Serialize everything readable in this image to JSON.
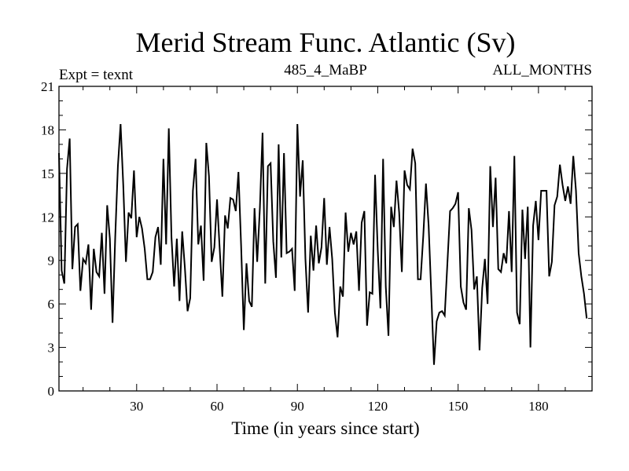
{
  "chart_data": {
    "type": "line",
    "title": "Merid Stream Func. Atlantic (Sv)",
    "subtitle_left": "Expt = texnt",
    "subtitle_center": "485_4_MaBP",
    "subtitle_right": "ALL_MONTHS",
    "xlabel": "Time (in years since start)",
    "ylabel": "",
    "xlim": [
      1,
      200
    ],
    "ylim": [
      0,
      21
    ],
    "xticks": [
      30,
      60,
      90,
      120,
      150,
      180
    ],
    "yticks": [
      0,
      3,
      6,
      9,
      12,
      15,
      18,
      21
    ],
    "series": [
      {
        "name": "Merid Stream Func. Atlantic",
        "x_start": 1,
        "x_step": 1,
        "values": [
          16.4,
          8.3,
          7.4,
          15.3,
          17.4,
          8.4,
          11.3,
          11.5,
          6.9,
          9.1,
          8.8,
          10.1,
          5.6,
          9.8,
          8.2,
          7.9,
          10.9,
          6.7,
          12.8,
          10.5,
          4.7,
          10.6,
          15.5,
          18.4,
          14.2,
          8.9,
          12.3,
          11.9,
          15.2,
          10.6,
          12.0,
          11.2,
          9.8,
          7.7,
          7.7,
          8.2,
          10.6,
          11.3,
          8.7,
          16.0,
          10.1,
          18.1,
          10.6,
          7.2,
          10.5,
          6.2,
          11.0,
          8.5,
          5.5,
          6.4,
          13.8,
          16.0,
          10.1,
          11.4,
          7.6,
          17.1,
          14.8,
          8.9,
          9.9,
          13.2,
          9.8,
          6.5,
          12.1,
          11.2,
          13.3,
          13.2,
          12.4,
          15.1,
          10.0,
          4.2,
          8.8,
          6.2,
          5.8,
          12.6,
          8.9,
          12.6,
          17.8,
          7.4,
          15.5,
          15.7,
          10.3,
          7.8,
          17.0,
          9.2,
          16.4,
          9.5,
          9.6,
          9.8,
          6.9,
          18.4,
          13.4,
          15.9,
          9.1,
          5.4,
          10.7,
          8.3,
          11.4,
          8.8,
          9.9,
          13.3,
          8.7,
          11.3,
          9.1,
          5.4,
          3.7,
          7.2,
          6.5,
          12.3,
          9.6,
          10.9,
          10.1,
          11.0,
          6.9,
          11.6,
          12.4,
          4.5,
          6.8,
          6.7,
          14.9,
          9.7,
          5.7,
          16.0,
          7.2,
          3.8,
          12.7,
          11.3,
          14.5,
          12.3,
          8.2,
          15.2,
          14.2,
          13.9,
          16.7,
          15.7,
          7.7,
          7.7,
          10.7,
          14.3,
          11.4,
          6.6,
          1.8,
          4.8,
          5.4,
          5.5,
          5.2,
          8.8,
          12.4,
          12.6,
          12.9,
          13.7,
          7.2,
          6.1,
          5.6,
          12.6,
          11.1,
          7.0,
          7.9,
          2.8,
          7.1,
          9.1,
          6.0,
          15.5,
          11.3,
          14.7,
          8.4,
          8.2,
          9.5,
          8.8,
          12.4,
          8.2,
          16.2,
          5.4,
          4.6,
          12.5,
          9.1,
          12.7,
          3.0,
          11.4,
          13.1,
          10.4,
          13.8,
          13.8,
          13.8,
          7.9,
          8.9,
          12.8,
          13.4,
          15.6,
          14.2,
          13.1,
          14.1,
          12.9,
          16.2,
          13.8,
          9.5,
          7.9,
          6.7,
          5.0
        ]
      }
    ]
  }
}
